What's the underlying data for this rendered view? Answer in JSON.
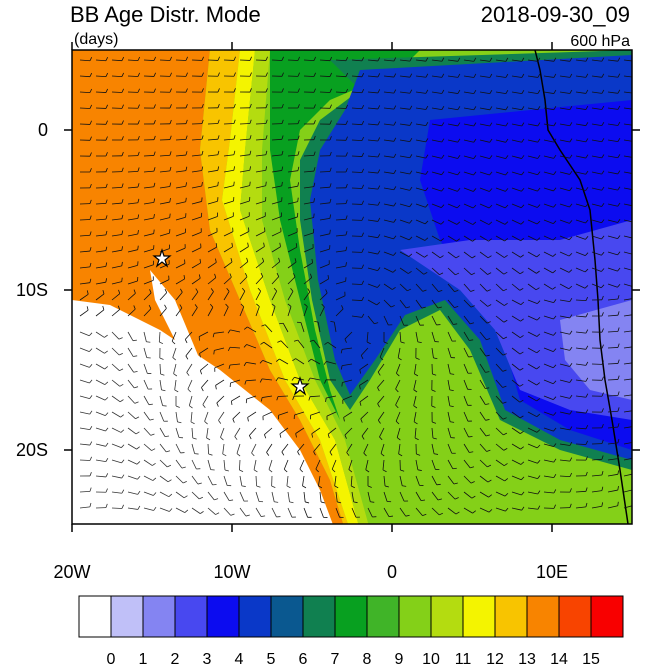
{
  "header": {
    "title": "BB Age Distr. Mode",
    "units": "(days)",
    "date": "2018-09-30_09",
    "level": "600 hPa"
  },
  "map": {
    "lonlim": [
      -20,
      15
    ],
    "latlim": [
      -25,
      5
    ],
    "lon_ticks": [
      {
        "value": -20,
        "label": "20W"
      },
      {
        "value": -10,
        "label": "10W"
      },
      0,
      {
        "value": 10,
        "label": "10E"
      }
    ],
    "lat_ticks": [
      0,
      {
        "value": -10,
        "label": "10S"
      },
      {
        "value": -20,
        "label": "20S"
      }
    ]
  },
  "colorbar": {
    "labels": [
      0,
      1,
      2,
      3,
      4,
      5,
      6,
      7,
      8,
      9,
      10,
      11,
      12,
      13,
      14,
      15
    ],
    "colors": [
      "#ffffff",
      "#c0c0f8",
      "#8484f2",
      "#4848f0",
      "#0c0cf0",
      "#0a38c8",
      "#0a5890",
      "#108050",
      "#08a020",
      "#40b428",
      "#84d018",
      "#b4dc10",
      "#f4f400",
      "#f8c400",
      "#f88400",
      "#f84400",
      "#f80000"
    ]
  }
}
